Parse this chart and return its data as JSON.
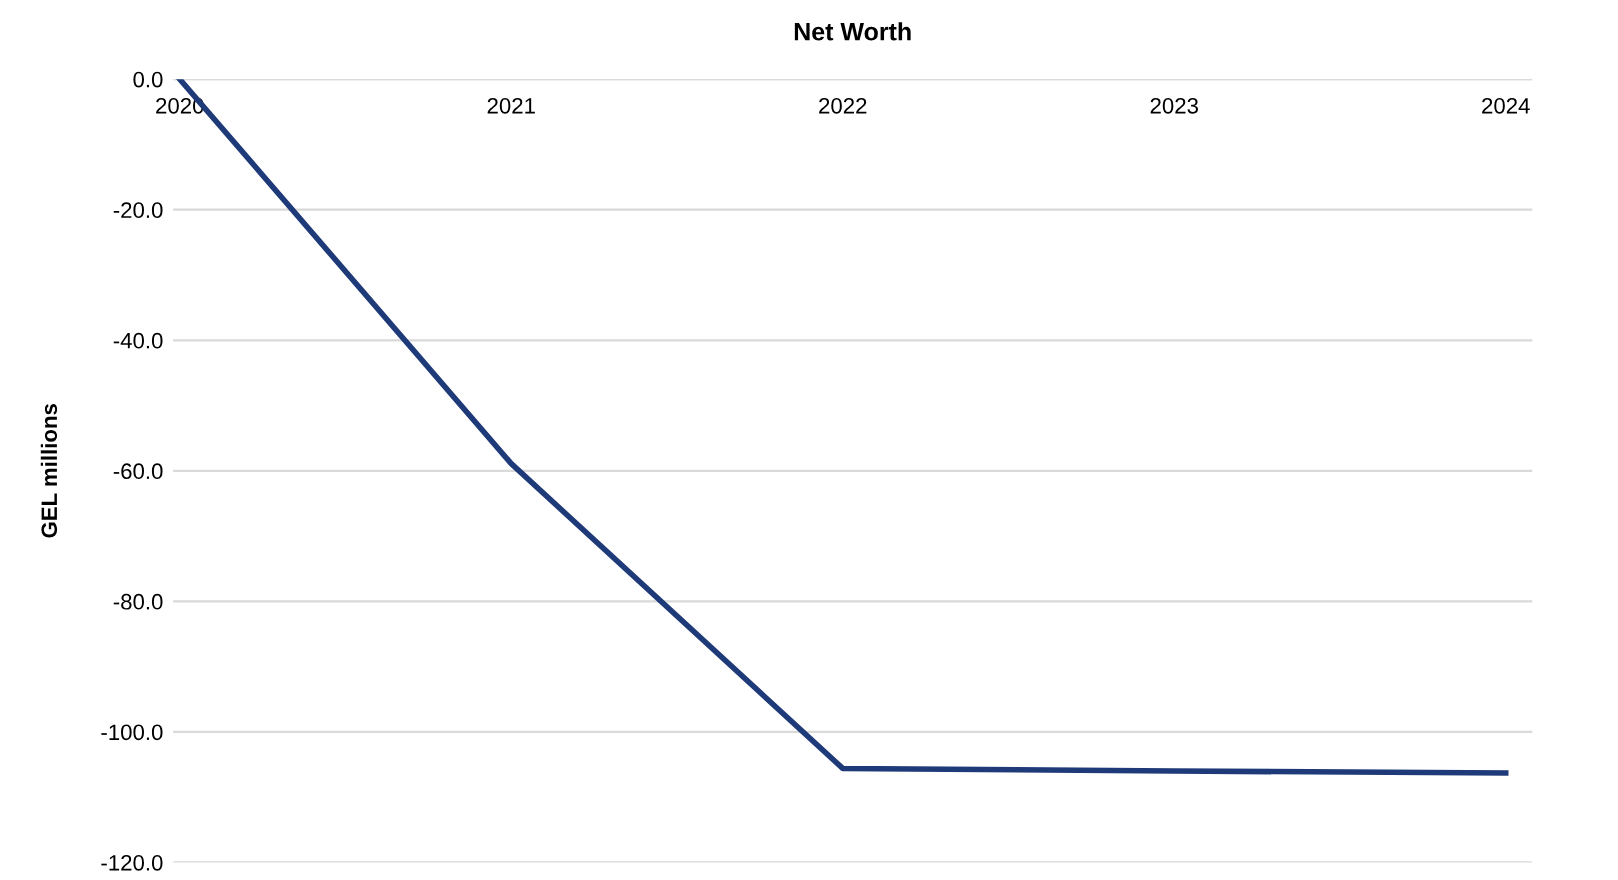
{
  "chart_data": {
    "type": "line",
    "title": "Net Worth",
    "ylabel": "GEL millions",
    "categories": [
      "2020",
      "2021",
      "2022",
      "2023",
      "2024"
    ],
    "series": [
      {
        "color": "#1f3a78",
        "values": [
          0,
          -58.9,
          -105.6,
          -106.0,
          -106.3
        ]
      }
    ],
    "ylim": [
      -120,
      0
    ],
    "yticks": [
      {
        "value": -120,
        "label": "-120.0"
      },
      {
        "value": -100,
        "label": "-100.0"
      },
      {
        "value": -80,
        "label": "-80.0"
      },
      {
        "value": -60,
        "label": "-60.0"
      },
      {
        "value": -40,
        "label": "-40.0"
      },
      {
        "value": -20,
        "label": "-20.0"
      },
      {
        "value": 0,
        "label": "0.0"
      }
    ],
    "grid": "y",
    "marker": "none",
    "line_style": "solid"
  }
}
